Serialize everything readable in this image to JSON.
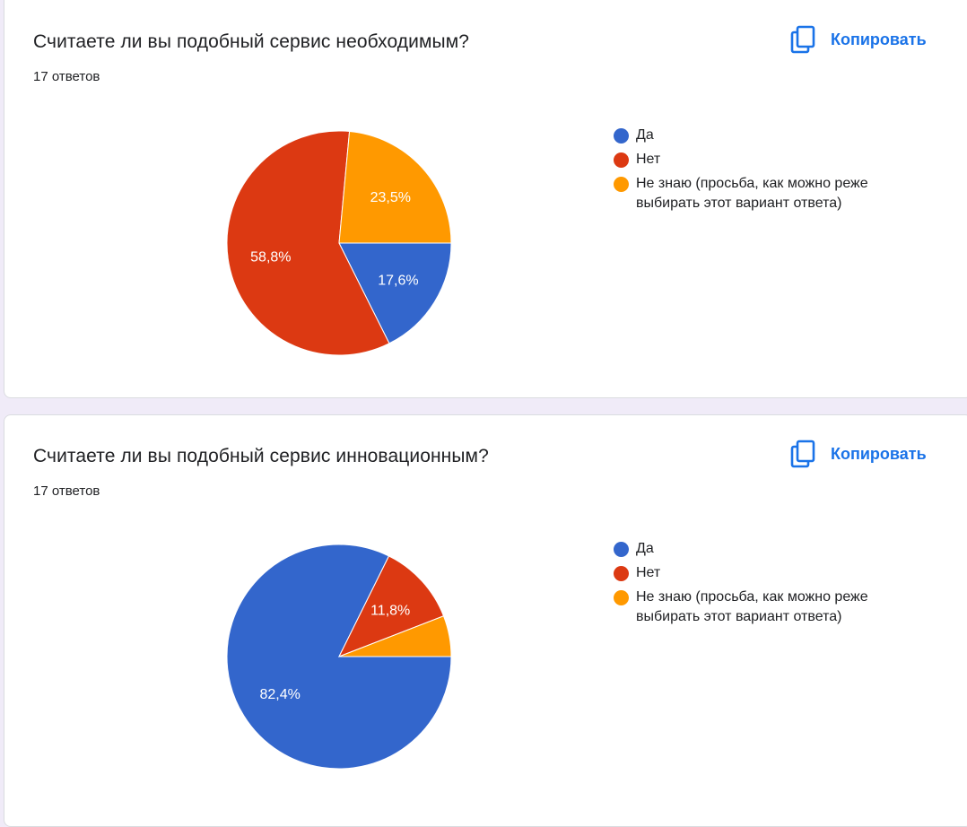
{
  "copy_label": "Копировать",
  "chart_data": [
    {
      "type": "pie",
      "title": "Считаете ли вы подобный сервис необходимым?",
      "subtitle": "17 ответов",
      "categories": [
        "Да",
        "Нет",
        "Не знаю (просьба, как можно реже выбирать этот вариант ответа)"
      ],
      "values": [
        17.6,
        58.8,
        23.5
      ],
      "labels": [
        "17,6%",
        "58,8%",
        "23,5%"
      ],
      "colors": [
        "#3366cc",
        "#dc3912",
        "#ff9900"
      ],
      "legend": "right"
    },
    {
      "type": "pie",
      "title": "Считаете ли вы подобный сервис инновационным?",
      "subtitle": "17 ответов",
      "categories": [
        "Да",
        "Нет",
        "Не знаю (просьба, как можно реже выбирать этот вариант ответа)"
      ],
      "values": [
        82.4,
        11.8,
        5.9
      ],
      "labels": [
        "82,4%",
        "11,8%",
        ""
      ],
      "colors": [
        "#3366cc",
        "#dc3912",
        "#ff9900"
      ],
      "legend": "right"
    }
  ]
}
